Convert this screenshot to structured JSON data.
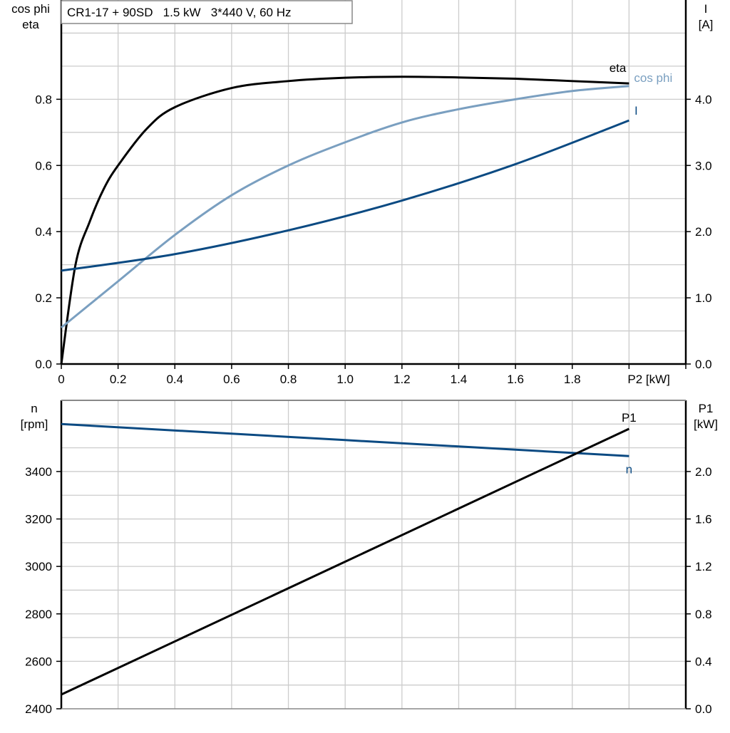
{
  "chart_data": [
    {
      "type": "line",
      "title": "CR1-17 + 90SD   1.5 kW   3*440 V, 60 Hz",
      "xlabel": "P2 [kW]",
      "xlim": [
        0,
        2.2
      ],
      "xticks": [
        "0",
        "0.2",
        "0.4",
        "0.6",
        "0.8",
        "1.0",
        "1.2",
        "1.4",
        "1.6",
        "1.8"
      ],
      "ylabel_left": [
        "cos phi",
        "eta"
      ],
      "ylim_left": [
        0,
        1.1
      ],
      "yticks_left": [
        "0.0",
        "0.2",
        "0.4",
        "0.6",
        "0.8"
      ],
      "ylabel_right": [
        "I",
        "[A]"
      ],
      "ylim_right": [
        0,
        5.5
      ],
      "yticks_right": [
        "0.0",
        "1.0",
        "2.0",
        "3.0",
        "4.0"
      ],
      "grid": true,
      "series": [
        {
          "name": "eta",
          "axis": "left",
          "color": "#000000",
          "x": [
            0,
            0.05,
            0.1,
            0.15,
            0.2,
            0.3,
            0.4,
            0.6,
            0.8,
            1.0,
            1.2,
            1.4,
            1.6,
            1.8,
            2.0
          ],
          "y": [
            0,
            0.3,
            0.43,
            0.53,
            0.6,
            0.71,
            0.776,
            0.834,
            0.855,
            0.865,
            0.868,
            0.866,
            0.862,
            0.855,
            0.848
          ]
        },
        {
          "name": "cos phi",
          "axis": "left",
          "color": "#7a9fc0",
          "x": [
            0,
            0.2,
            0.4,
            0.6,
            0.8,
            1.0,
            1.2,
            1.4,
            1.6,
            1.8,
            2.0
          ],
          "y": [
            0.11,
            0.25,
            0.39,
            0.51,
            0.6,
            0.67,
            0.73,
            0.77,
            0.8,
            0.825,
            0.84
          ]
        },
        {
          "name": "I",
          "axis": "right",
          "color": "#0b4a82",
          "x": [
            0,
            0.4,
            0.8,
            1.2,
            1.6,
            2.0
          ],
          "y": [
            1.41,
            1.66,
            2.02,
            2.47,
            3.02,
            3.68
          ]
        }
      ]
    },
    {
      "type": "line",
      "xlim": [
        0,
        2.2
      ],
      "ylabel_left": [
        "n",
        "[rpm]"
      ],
      "ylim_left": [
        2400,
        3700
      ],
      "yticks_left": [
        "2400",
        "2600",
        "2800",
        "3000",
        "3200",
        "3400"
      ],
      "ylabel_right": [
        "P1",
        "[kW]"
      ],
      "ylim_right": [
        0,
        2.6
      ],
      "yticks_right": [
        "0.0",
        "0.4",
        "0.8",
        "1.2",
        "1.6",
        "2.0"
      ],
      "grid": true,
      "series": [
        {
          "name": "n",
          "axis": "left",
          "color": "#0b4a82",
          "x": [
            0,
            2.0
          ],
          "y": [
            3600,
            3465
          ]
        },
        {
          "name": "P1",
          "axis": "right",
          "color": "#000000",
          "x": [
            0,
            2.0
          ],
          "y": [
            0.12,
            2.36
          ]
        }
      ]
    }
  ]
}
